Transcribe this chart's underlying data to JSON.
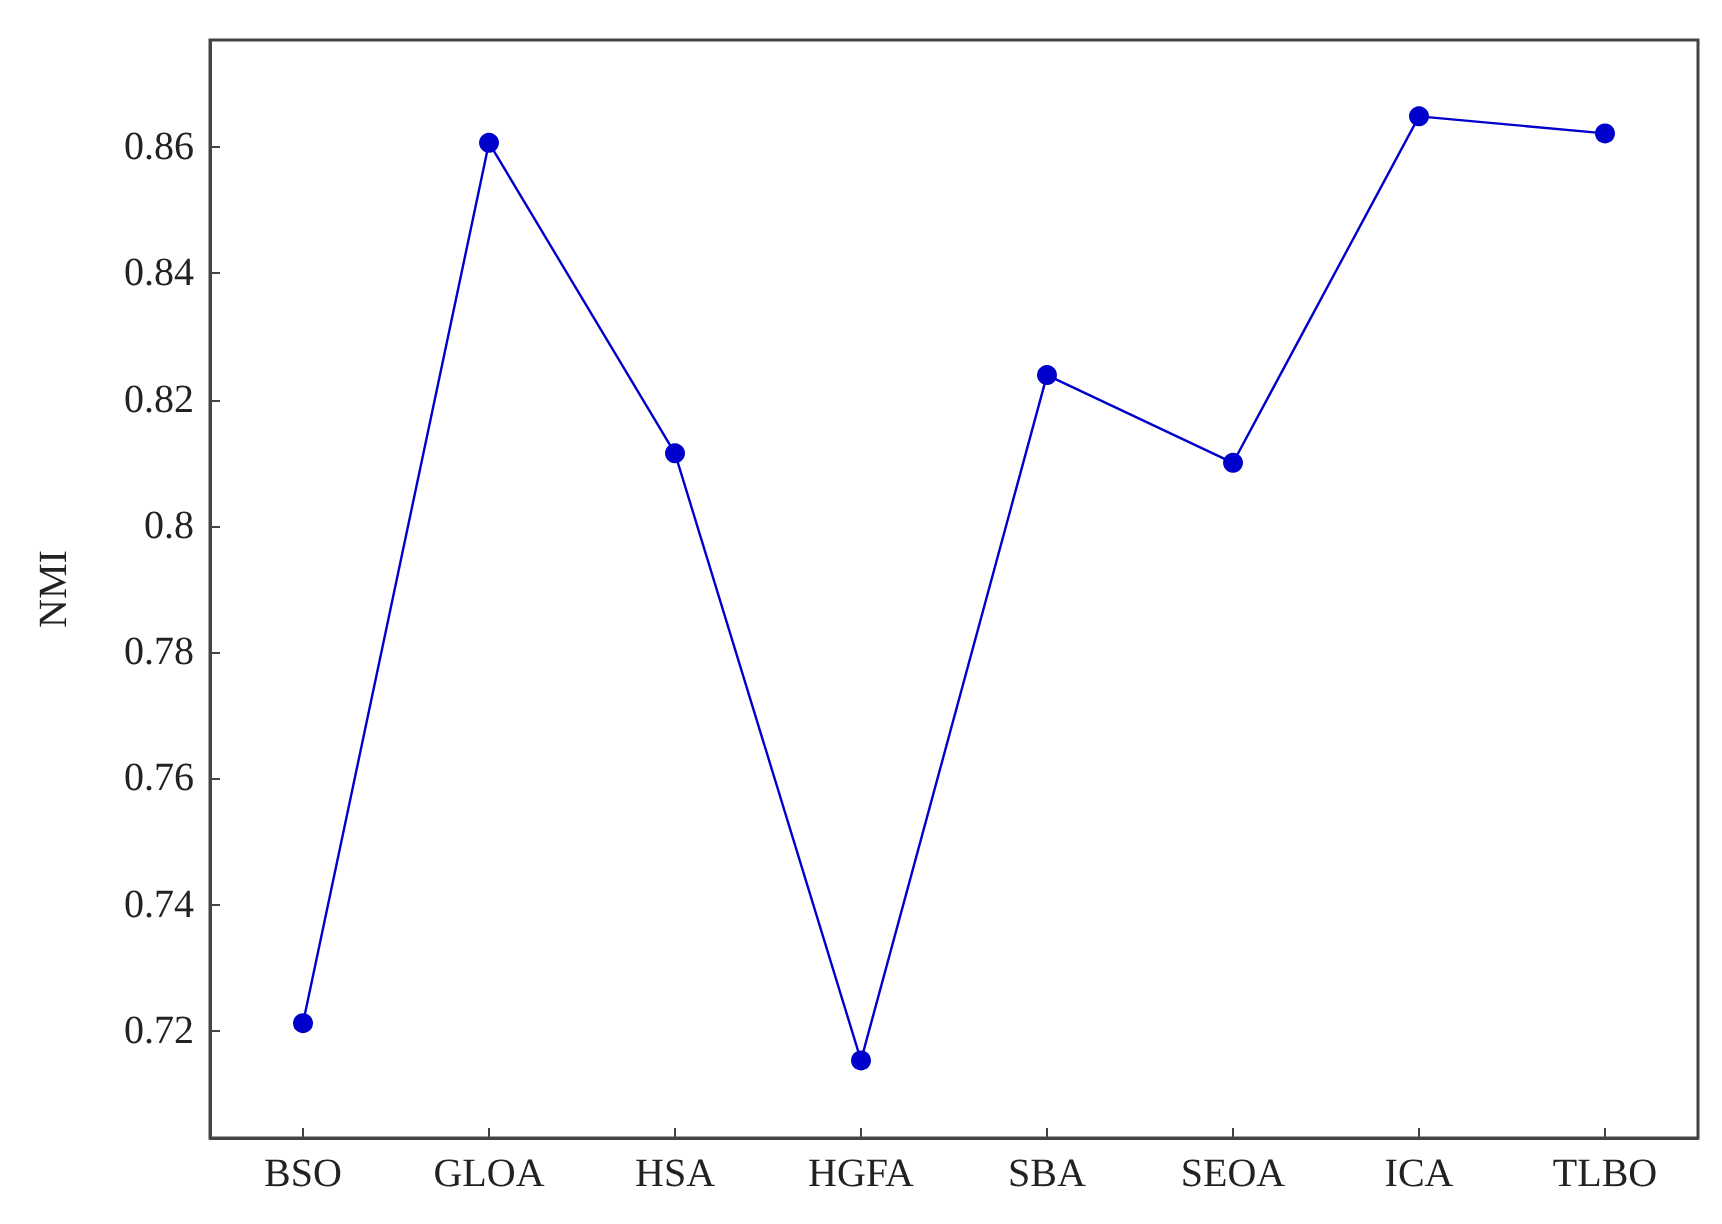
{
  "chart_data": {
    "type": "line",
    "ylabel": "NMI",
    "categories": [
      "BSO",
      "GLOA",
      "HSA",
      "HGFA",
      "SBA",
      "SEOA",
      "ICA",
      "TLBO"
    ],
    "series": [
      {
        "color": "#0000cc",
        "values": [
          0.7212,
          0.8607,
          0.8115,
          0.7153,
          0.8239,
          0.81,
          0.8649,
          0.8622
        ]
      }
    ],
    "ylim": [
      0.703,
      0.877
    ],
    "yticks": [
      0.72,
      0.74,
      0.76,
      0.78,
      0.8,
      0.82,
      0.84,
      0.86
    ],
    "grid": false,
    "marker": "circle",
    "line_style": "solid"
  }
}
